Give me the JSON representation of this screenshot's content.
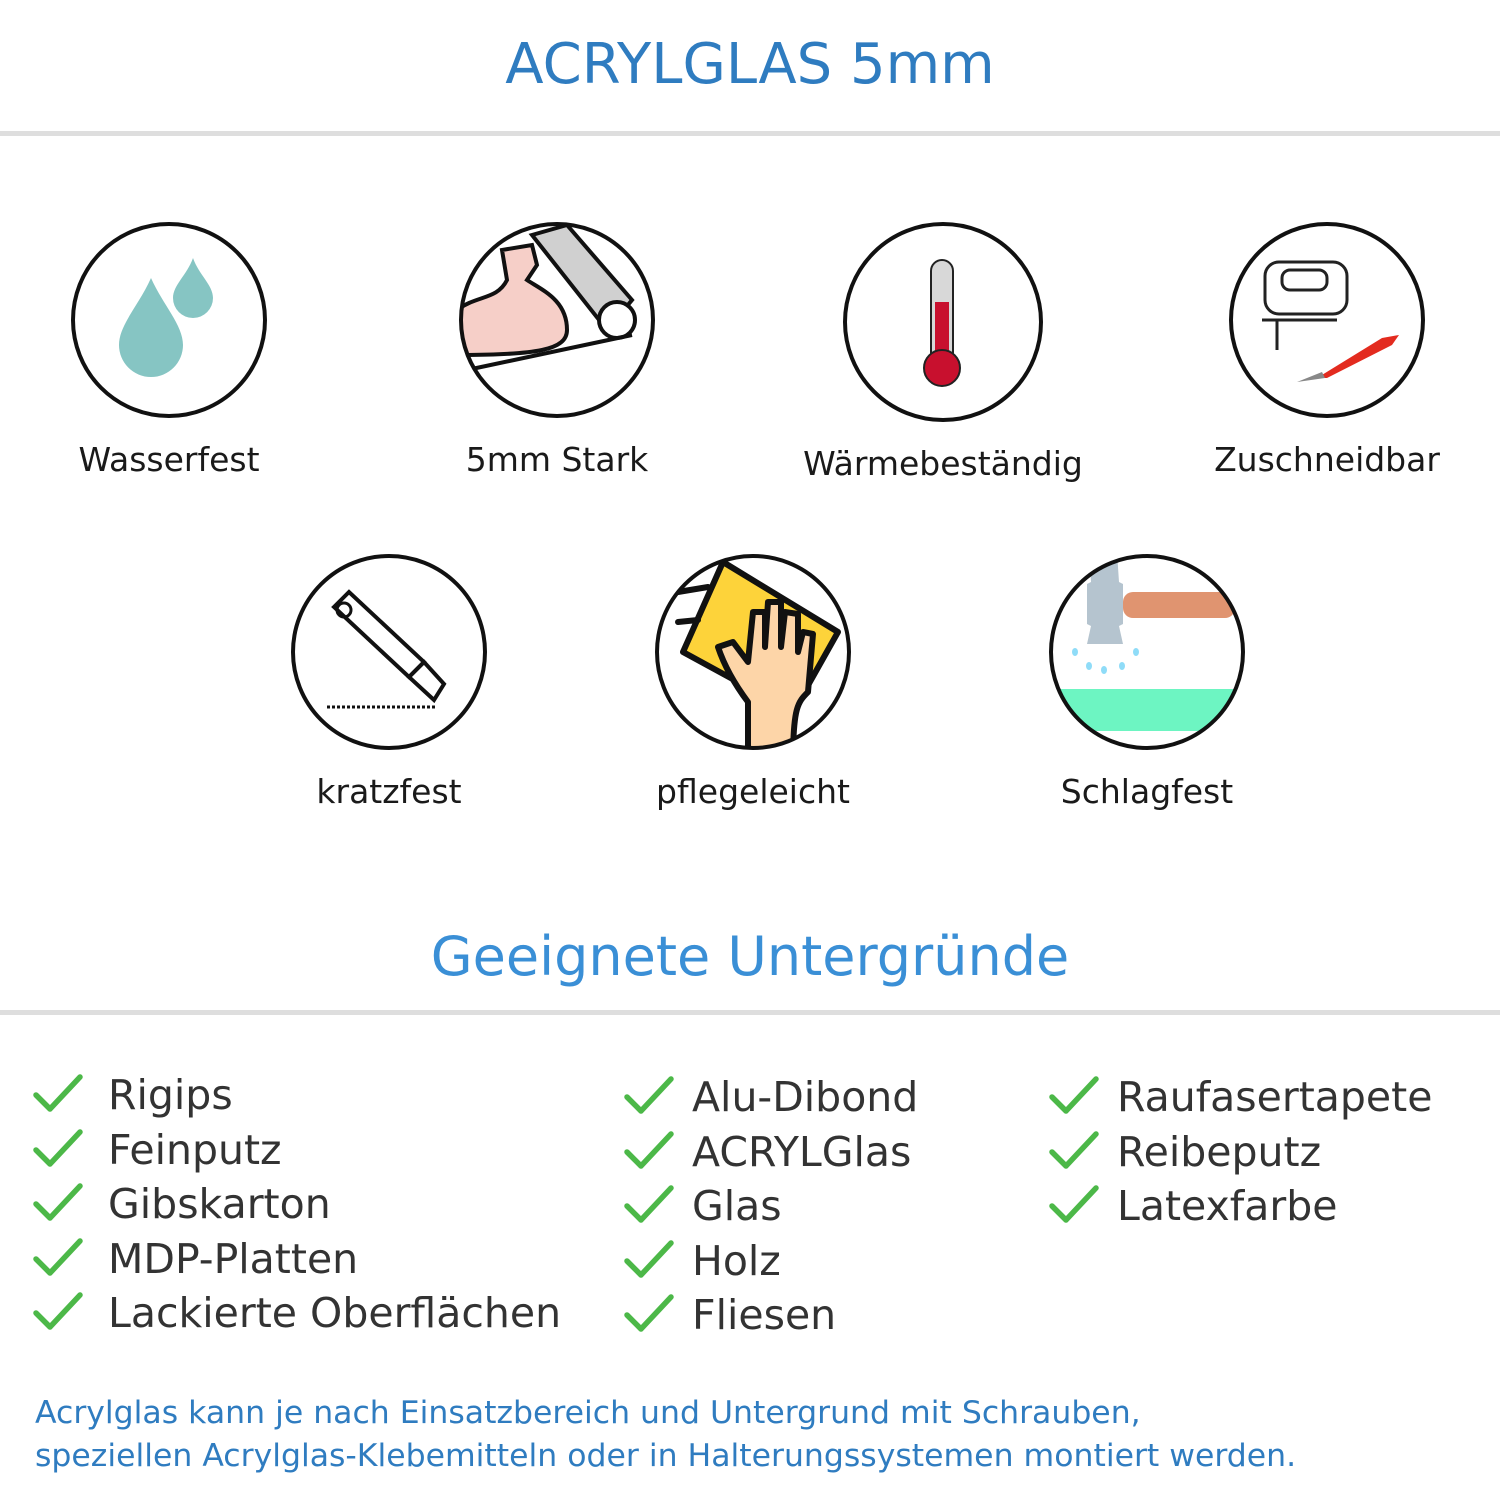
{
  "header": {
    "title": "ACRYLGLAS 5mm"
  },
  "features": [
    {
      "label": "Wasserfest",
      "icon": "water-drops-icon"
    },
    {
      "label": "5mm Stark",
      "icon": "strong-arm-icon"
    },
    {
      "label": "Wärmebeständig",
      "icon": "thermometer-icon"
    },
    {
      "label": "Zuschneidbar",
      "icon": "jigsaw-icon"
    },
    {
      "label": "kratzfest",
      "icon": "cutter-knife-icon"
    },
    {
      "label": "pflegeleicht",
      "icon": "cleaning-hand-icon"
    },
    {
      "label": "Schlagfest",
      "icon": "hammer-icon"
    }
  ],
  "surfaces": {
    "title": "Geeignete Untergründe",
    "columns": [
      [
        "Rigips",
        "Feinputz",
        "Gibskarton",
        "MDP-Platten",
        "Lackierte Oberflächen"
      ],
      [
        "Alu-Dibond",
        "ACRYLGlas",
        "Glas",
        "Holz",
        "Fliesen"
      ],
      [
        "Raufasertapete",
        "Reibeputz",
        "Latexfarbe"
      ]
    ]
  },
  "footer": {
    "line1": "Acrylglas kann je nach Einsatzbereich und Untergrund mit Schrauben,",
    "line2": "speziellen Acrylglas-Klebemitteln oder in Halterungssystemen montiert werden."
  },
  "colors": {
    "title": "#2f7cc0",
    "subtitle": "#3a8fd6",
    "check": "#4cb848",
    "rule": "#dedede"
  }
}
